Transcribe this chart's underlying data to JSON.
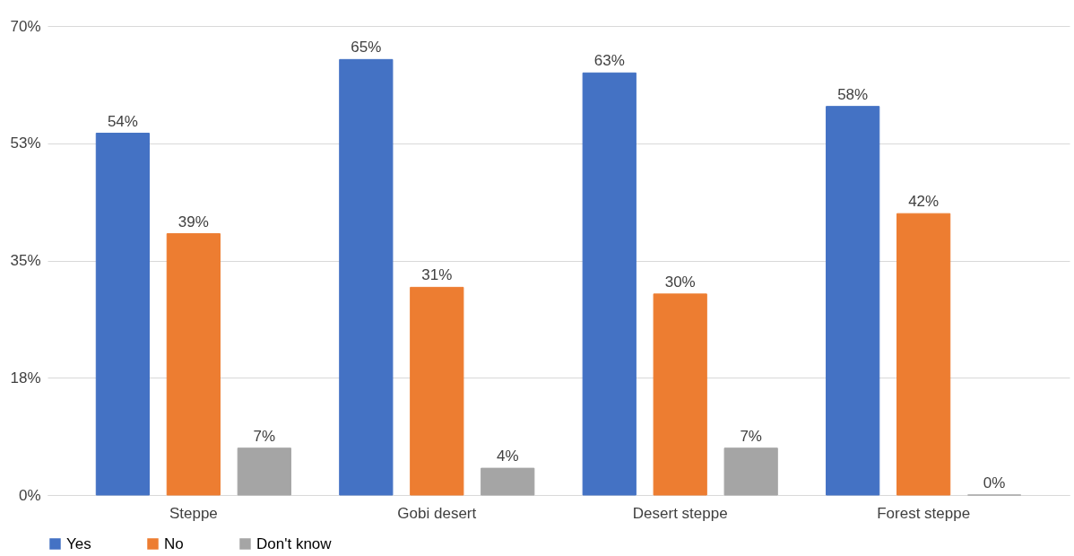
{
  "chart_data": {
    "type": "bar",
    "categories": [
      "Steppe",
      "Gobi desert",
      "Desert steppe",
      "Forest steppe"
    ],
    "series": [
      {
        "name": "Yes",
        "color": "#4472c4",
        "values": [
          54,
          65,
          63,
          58
        ],
        "value_labels": [
          "54%",
          "65%",
          "63%",
          "58%"
        ]
      },
      {
        "name": "No",
        "color": "#ed7d31",
        "values": [
          39,
          31,
          30,
          42
        ],
        "value_labels": [
          "39%",
          "31%",
          "30%",
          "42%"
        ]
      },
      {
        "name": "Don't know",
        "color": "#a5a5a5",
        "values": [
          7,
          4,
          7,
          0
        ],
        "value_labels": [
          "7%",
          "4%",
          "7%",
          "0%"
        ]
      }
    ],
    "ylim": [
      0,
      70
    ],
    "yticks": [
      {
        "value": 0,
        "label": "0%"
      },
      {
        "value": 17.5,
        "label": "18%"
      },
      {
        "value": 35,
        "label": "35%"
      },
      {
        "value": 52.5,
        "label": "53%"
      },
      {
        "value": 70,
        "label": "70%"
      }
    ],
    "grid": "y",
    "legend": "bottom"
  }
}
